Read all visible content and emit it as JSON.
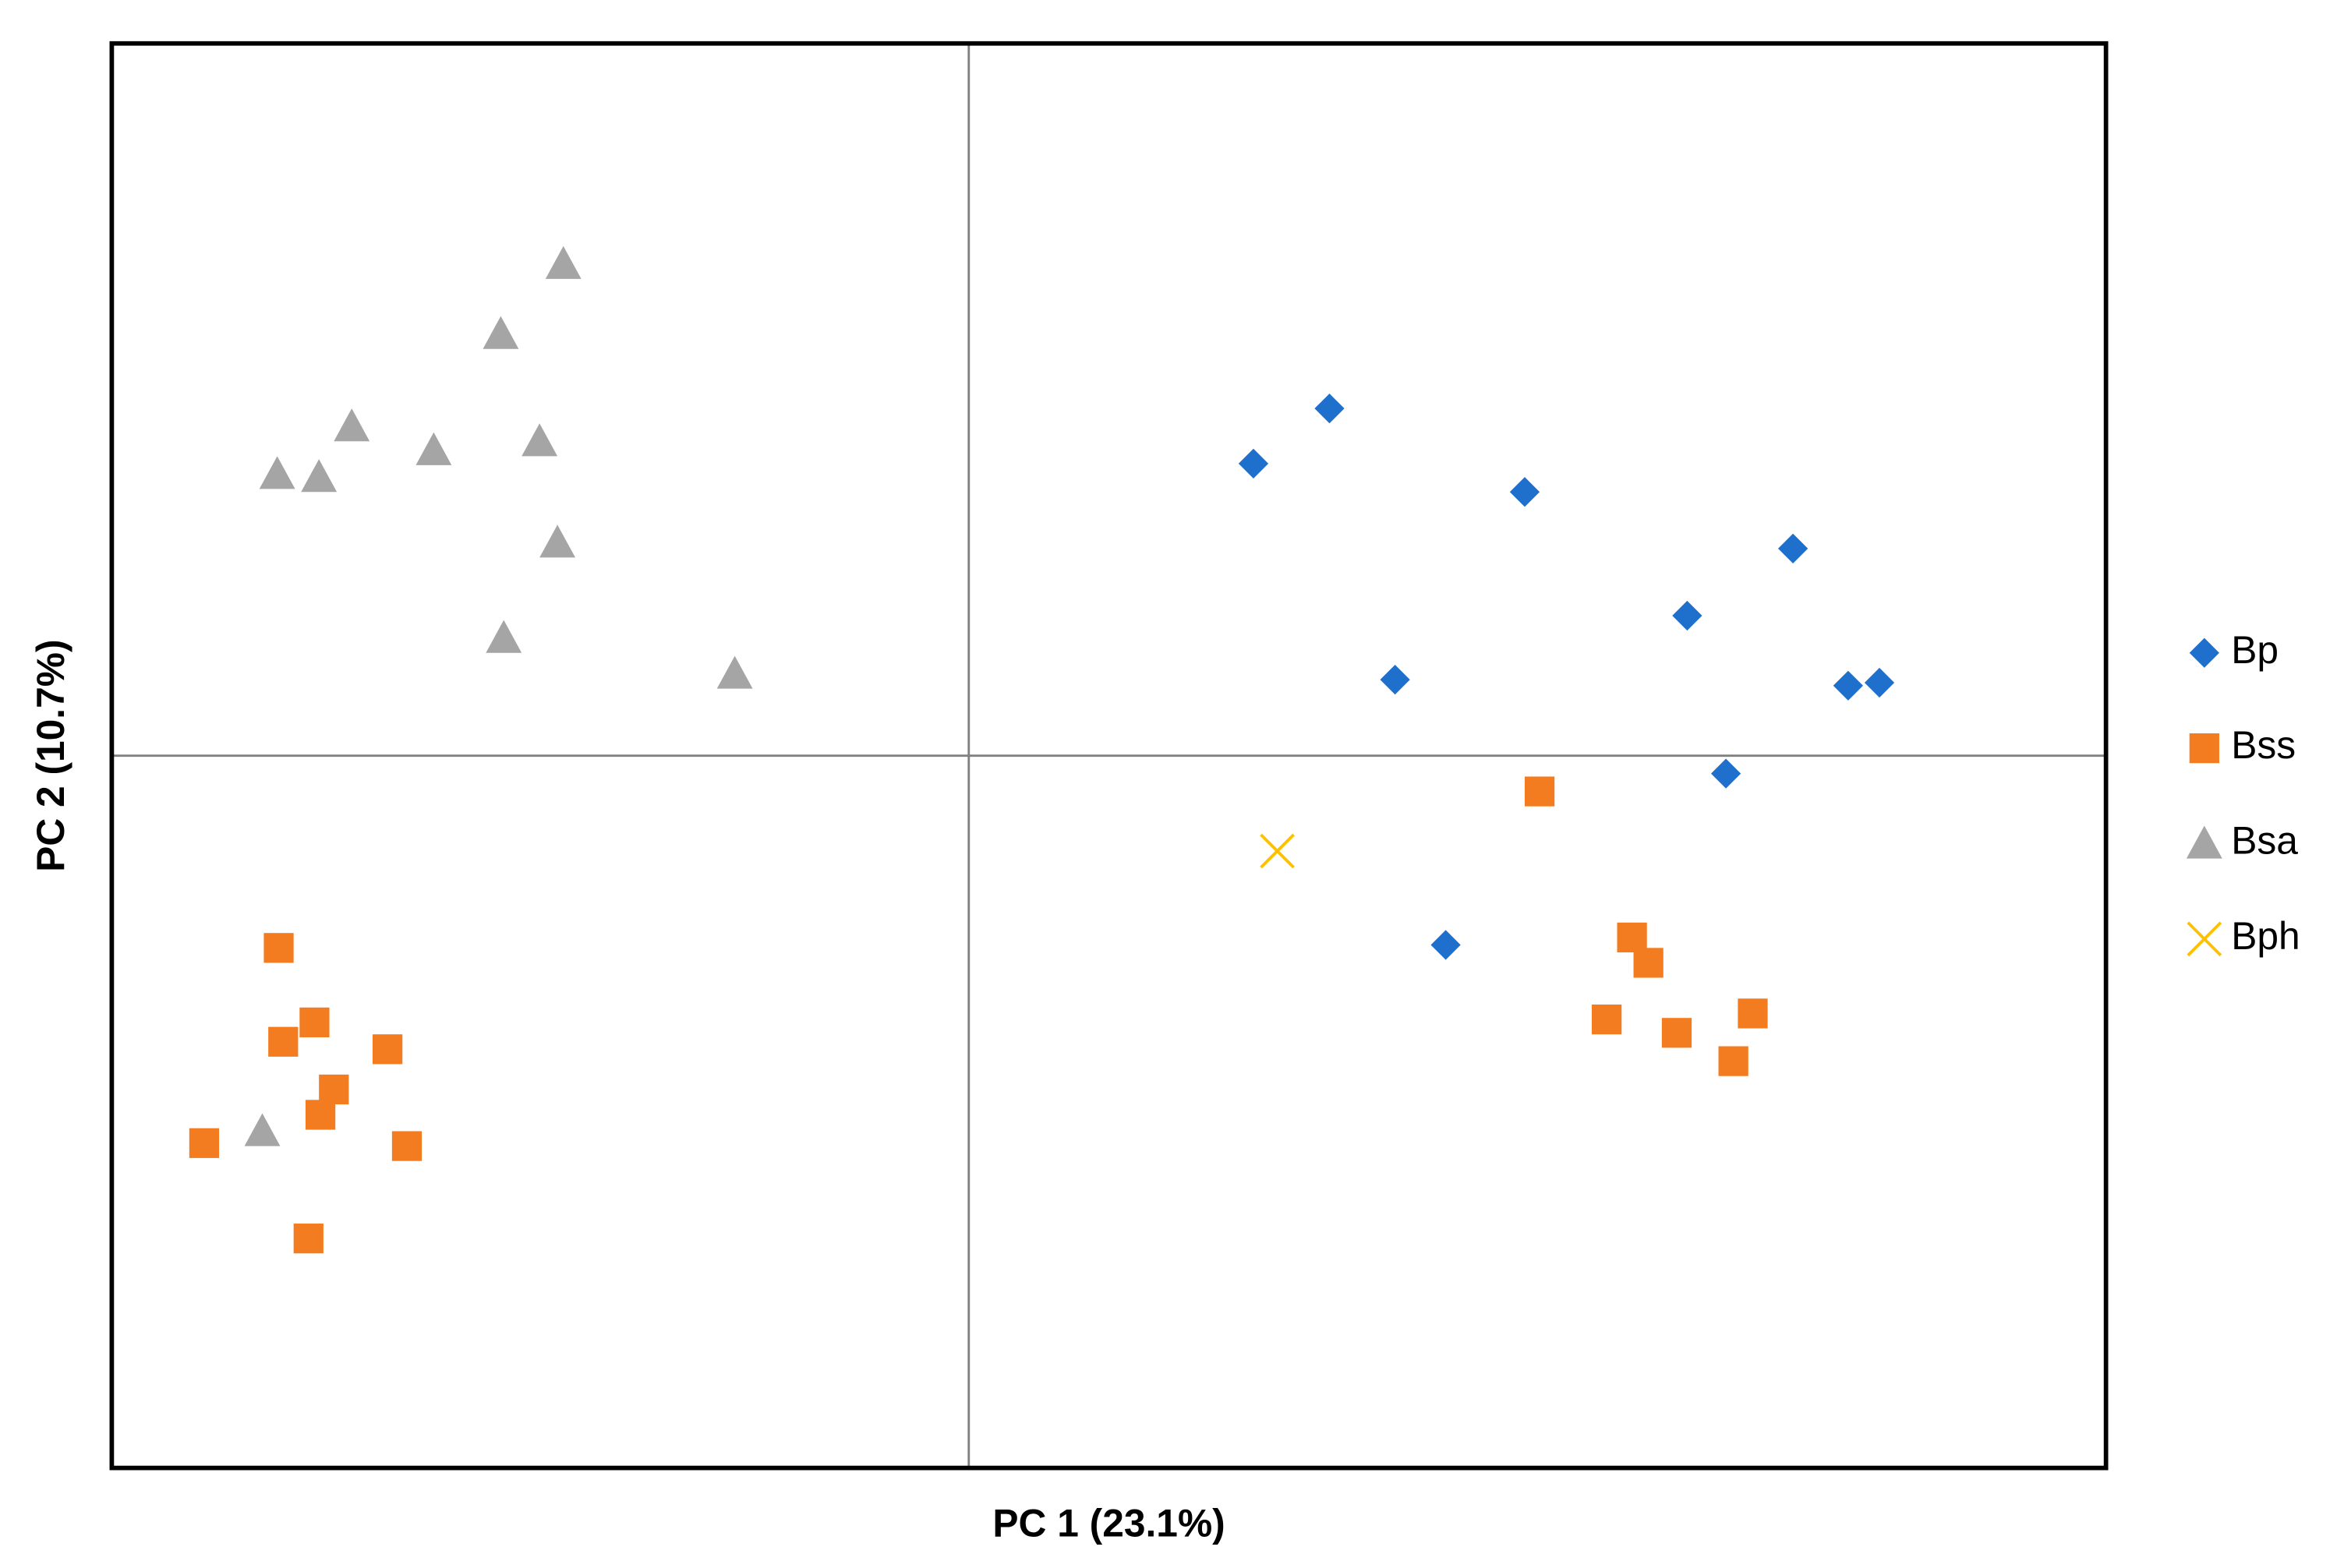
{
  "chart_data": {
    "type": "scatter",
    "x_label": "PC 1 (23.1%)",
    "y_label": "PC 2 (10.7%)",
    "xlim": [
      -5.75,
      7.63
    ],
    "ylim": [
      -4.78,
      4.78
    ],
    "zero_lines": true,
    "legend": "right",
    "series": [
      {
        "name": "Bp",
        "color": "#1f6fcc",
        "marker": "diamond",
        "x": [
          1.91,
          2.42,
          3.73,
          5.53,
          4.82,
          2.86,
          5.9,
          6.11,
          5.08,
          3.2
        ],
        "values": [
          1.96,
          2.33,
          1.77,
          1.39,
          0.94,
          0.51,
          0.47,
          0.49,
          -0.12,
          -1.27
        ]
      },
      {
        "name": "Bss",
        "color": "#f47c20",
        "marker": "square",
        "x": [
          -4.63,
          -4.39,
          -4.6,
          -3.9,
          -4.26,
          -4.35,
          -5.13,
          -3.77,
          -4.43,
          3.83,
          4.45,
          4.56,
          4.28,
          4.75,
          5.26,
          5.13
        ],
        "values": [
          -1.29,
          -1.79,
          -1.92,
          -1.97,
          -2.24,
          -2.41,
          -2.6,
          -2.62,
          -3.24,
          -0.24,
          -1.22,
          -1.39,
          -1.77,
          -1.86,
          -1.73,
          -2.05
        ]
      },
      {
        "name": "Bsa",
        "color": "#a5a5a5",
        "marker": "triangle",
        "x": [
          -2.72,
          -3.14,
          -4.14,
          -3.59,
          -2.88,
          -4.64,
          -4.36,
          -2.76,
          -3.12,
          -1.57,
          -4.74
        ],
        "values": [
          3.3,
          2.83,
          2.21,
          2.05,
          2.11,
          1.89,
          1.87,
          1.43,
          0.79,
          0.55,
          -2.52
        ]
      },
      {
        "name": "Bph",
        "color": "#ffc000",
        "marker": "x",
        "x": [
          2.07
        ],
        "values": [
          -0.64
        ]
      }
    ]
  }
}
